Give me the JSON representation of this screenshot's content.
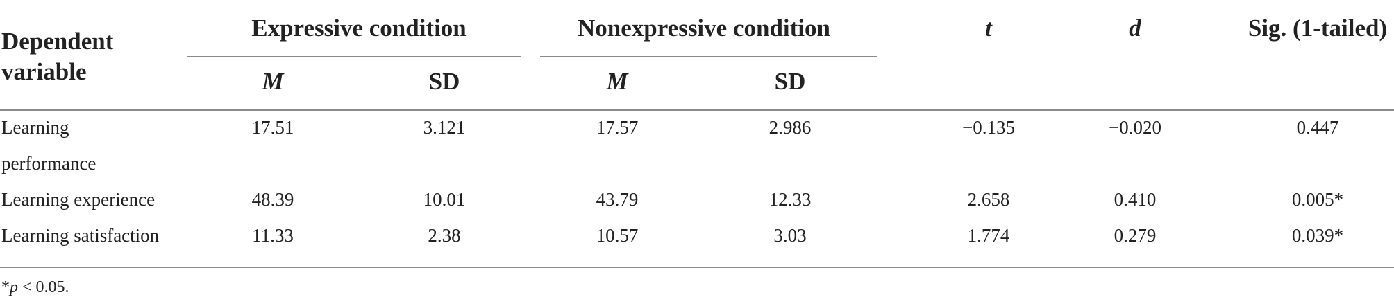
{
  "header": {
    "dependent_variable_line1": "Dependent",
    "dependent_variable_line2": "variable",
    "group_expressive": "Expressive condition",
    "group_nonexpressive": "Nonexpressive condition",
    "t": "t",
    "d": "d",
    "sig": "Sig. (1-tailed)",
    "expressive_m": "M",
    "expressive_sd": "SD",
    "nonexpressive_m": "M",
    "nonexpressive_sd": "SD"
  },
  "rows": [
    {
      "label_line1": "Learning",
      "label_line2": "performance",
      "exp_m": "17.51",
      "exp_sd": "3.121",
      "nonexp_m": "17.57",
      "nonexp_sd": "2.986",
      "t": "−0.135",
      "d": "−0.020",
      "sig": "0.447"
    },
    {
      "label_line1": "Learning experience",
      "exp_m": "48.39",
      "exp_sd": "10.01",
      "nonexp_m": "43.79",
      "nonexp_sd": "12.33",
      "t": "2.658",
      "d": "0.410",
      "sig": "0.005*"
    },
    {
      "label_line1": "Learning satisfaction",
      "exp_m": "11.33",
      "exp_sd": "2.38",
      "nonexp_m": "10.57",
      "nonexp_sd": "3.03",
      "t": "1.774",
      "d": "0.279",
      "sig": "0.039*"
    }
  ],
  "footnote": {
    "symbol": "*",
    "variable": "p",
    "text": " < 0.05."
  }
}
